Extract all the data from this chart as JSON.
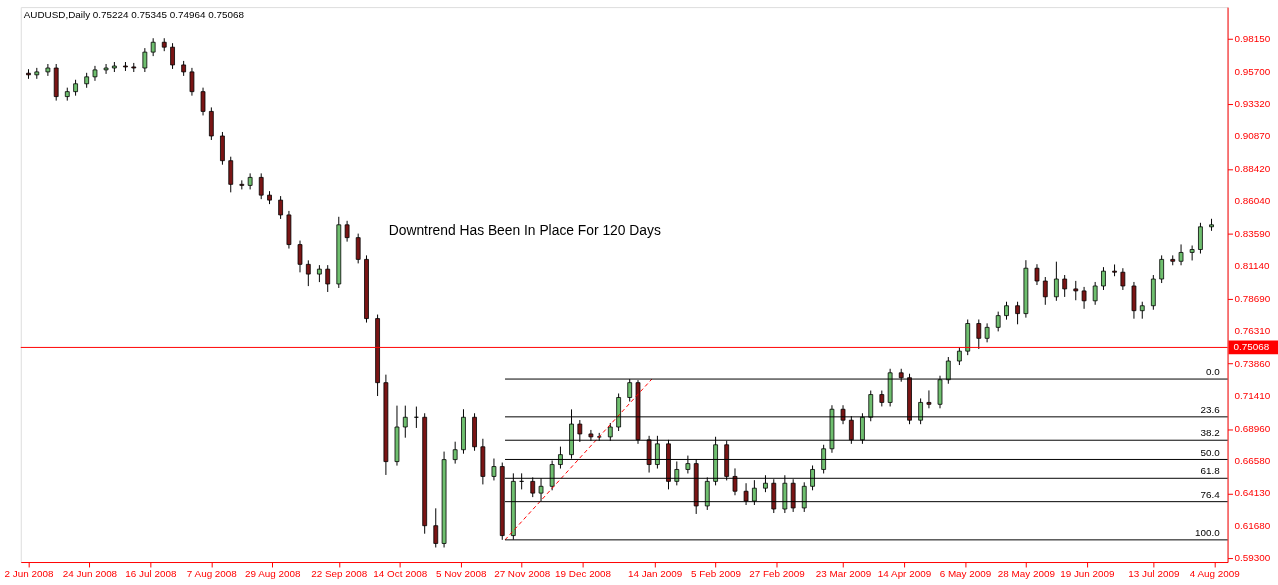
{
  "chart_data": {
    "type": "candlestick",
    "title": "AUDUSD,Daily  0.75224 0.75345 0.74964 0.75068",
    "annotations": [
      "Downtrend Has Been In Place For 120 Days",
      {
        "text": "0.0",
        "x": "2009-08-06",
        "y": 0.727
      },
      {
        "text": "23.6",
        "x": "2009-08-06",
        "y": 0.6987
      },
      {
        "text": "38.2",
        "x": "2009-08-06",
        "y": 0.6812
      },
      {
        "text": "50.0",
        "x": "2009-08-06",
        "y": 0.6668
      },
      {
        "text": "61.8",
        "x": "2009-08-06",
        "y": 0.6527
      },
      {
        "text": "76.4",
        "x": "2009-08-06",
        "y": 0.6352
      },
      {
        "text": "100.0",
        "x": "2009-08-06",
        "y": 0.6066
      }
    ],
    "x": [
      "2008-06-02",
      "2008-06-05",
      "2008-06-09",
      "2008-06-12",
      "2008-06-16",
      "2008-06-19",
      "2008-06-23",
      "2008-06-26",
      "2008-06-30",
      "2008-07-03",
      "2008-07-07",
      "2008-07-10",
      "2008-07-14",
      "2008-07-17",
      "2008-07-21",
      "2008-07-24",
      "2008-07-28",
      "2008-07-31",
      "2008-08-04",
      "2008-08-07",
      "2008-08-11",
      "2008-08-14",
      "2008-08-18",
      "2008-08-21",
      "2008-08-25",
      "2008-08-28",
      "2008-09-01",
      "2008-09-04",
      "2008-09-08",
      "2008-09-11",
      "2008-09-15",
      "2008-09-18",
      "2008-09-22",
      "2008-09-25",
      "2008-09-29",
      "2008-10-02",
      "2008-10-06",
      "2008-10-09",
      "2008-10-13",
      "2008-10-16",
      "2008-10-20",
      "2008-10-23",
      "2008-10-27",
      "2008-10-30",
      "2008-11-03",
      "2008-11-06",
      "2008-11-10",
      "2008-11-13",
      "2008-11-17",
      "2008-11-20",
      "2008-11-24",
      "2008-11-27",
      "2008-12-01",
      "2008-12-04",
      "2008-12-08",
      "2008-12-11",
      "2008-12-15",
      "2008-12-18",
      "2008-12-22",
      "2008-12-25",
      "2008-12-29",
      "2009-01-01",
      "2009-01-05",
      "2009-01-08",
      "2009-01-12",
      "2009-01-15",
      "2009-01-19",
      "2009-01-22",
      "2009-01-26",
      "2009-01-29",
      "2009-02-02",
      "2009-02-05",
      "2009-02-09",
      "2009-02-12",
      "2009-02-16",
      "2009-02-19",
      "2009-02-23",
      "2009-02-26",
      "2009-03-02",
      "2009-03-05",
      "2009-03-09",
      "2009-03-12",
      "2009-03-16",
      "2009-03-19",
      "2009-03-23",
      "2009-03-26",
      "2009-03-30",
      "2009-04-02",
      "2009-04-06",
      "2009-04-09",
      "2009-04-13",
      "2009-04-16",
      "2009-04-20",
      "2009-04-23",
      "2009-04-27",
      "2009-04-30",
      "2009-05-04",
      "2009-05-07",
      "2009-05-11",
      "2009-05-14",
      "2009-05-18",
      "2009-05-21",
      "2009-05-25",
      "2009-05-28",
      "2009-06-01",
      "2009-06-04",
      "2009-06-08",
      "2009-06-11",
      "2009-06-15",
      "2009-06-18",
      "2009-06-22",
      "2009-06-25",
      "2009-06-29",
      "2009-07-02",
      "2009-07-06",
      "2009-07-09",
      "2009-07-13",
      "2009-07-16",
      "2009-07-20",
      "2009-07-23",
      "2009-07-27",
      "2009-07-30",
      "2009-08-03"
    ],
    "ohlc": [
      [
        0.956,
        0.959,
        0.9518,
        0.9548
      ],
      [
        0.9548,
        0.96,
        0.9518,
        0.957
      ],
      [
        0.957,
        0.9629,
        0.954,
        0.9599
      ],
      [
        0.9599,
        0.9629,
        0.9355,
        0.9385
      ],
      [
        0.9385,
        0.9452,
        0.9355,
        0.9422
      ],
      [
        0.9422,
        0.9511,
        0.9392,
        0.9481
      ],
      [
        0.9481,
        0.9563,
        0.9451,
        0.9533
      ],
      [
        0.9533,
        0.9615,
        0.9503,
        0.9585
      ],
      [
        0.9585,
        0.9629,
        0.9555,
        0.9599
      ],
      [
        0.9599,
        0.9644,
        0.9569,
        0.9614
      ],
      [
        0.9614,
        0.9644,
        0.9577,
        0.9607
      ],
      [
        0.9607,
        0.9637,
        0.9569,
        0.9599
      ],
      [
        0.9599,
        0.9748,
        0.9569,
        0.9718
      ],
      [
        0.9718,
        0.9822,
        0.9688,
        0.9792
      ],
      [
        0.9792,
        0.9822,
        0.9725,
        0.9755
      ],
      [
        0.9755,
        0.9785,
        0.9592,
        0.9622
      ],
      [
        0.9622,
        0.9652,
        0.954,
        0.957
      ],
      [
        0.957,
        0.96,
        0.9392,
        0.9422
      ],
      [
        0.9422,
        0.9452,
        0.9244,
        0.9274
      ],
      [
        0.9274,
        0.9304,
        0.906,
        0.909
      ],
      [
        0.909,
        0.912,
        0.8875,
        0.8905
      ],
      [
        0.8905,
        0.8935,
        0.8668,
        0.8728
      ],
      [
        0.8728,
        0.8758,
        0.869,
        0.872
      ],
      [
        0.872,
        0.881,
        0.869,
        0.878
      ],
      [
        0.878,
        0.881,
        0.8617,
        0.8647
      ],
      [
        0.8647,
        0.8677,
        0.858,
        0.861
      ],
      [
        0.861,
        0.864,
        0.8469,
        0.8499
      ],
      [
        0.8499,
        0.8529,
        0.8247,
        0.8277
      ],
      [
        0.8277,
        0.8307,
        0.8069,
        0.8129
      ],
      [
        0.8129,
        0.8159,
        0.7966,
        0.8056
      ],
      [
        0.8056,
        0.8123,
        0.7996,
        0.8093
      ],
      [
        0.8093,
        0.8123,
        0.7922,
        0.7982
      ],
      [
        0.7982,
        0.8485,
        0.7952,
        0.8425
      ],
      [
        0.8425,
        0.8455,
        0.8299,
        0.8329
      ],
      [
        0.8329,
        0.8359,
        0.8136,
        0.8166
      ],
      [
        0.8166,
        0.8196,
        0.7693,
        0.7723
      ],
      [
        0.7723,
        0.7753,
        0.7143,
        0.7243
      ],
      [
        0.7243,
        0.7303,
        0.6552,
        0.6652
      ],
      [
        0.6652,
        0.7071,
        0.6622,
        0.6911
      ],
      [
        0.6911,
        0.7071,
        0.6831,
        0.6984
      ],
      [
        0.6984,
        0.7064,
        0.6904,
        0.6984
      ],
      [
        0.6984,
        0.7014,
        0.6112,
        0.6172
      ],
      [
        0.6172,
        0.6302,
        0.6009,
        0.6039
      ],
      [
        0.6039,
        0.6727,
        0.6009,
        0.6667
      ],
      [
        0.6667,
        0.6801,
        0.6637,
        0.6741
      ],
      [
        0.6741,
        0.7044,
        0.6711,
        0.6984
      ],
      [
        0.6984,
        0.7014,
        0.6733,
        0.6763
      ],
      [
        0.6763,
        0.6823,
        0.6481,
        0.6541
      ],
      [
        0.6541,
        0.6675,
        0.6511,
        0.6615
      ],
      [
        0.6615,
        0.6645,
        0.6066,
        0.6098
      ],
      [
        0.6098,
        0.6564,
        0.6068,
        0.6504
      ],
      [
        0.6504,
        0.6564,
        0.6444,
        0.6504
      ],
      [
        0.6504,
        0.6534,
        0.6386,
        0.6416
      ],
      [
        0.6416,
        0.6527,
        0.6356,
        0.6467
      ],
      [
        0.6467,
        0.666,
        0.6437,
        0.663
      ],
      [
        0.663,
        0.6764,
        0.66,
        0.6704
      ],
      [
        0.6704,
        0.7043,
        0.6674,
        0.6933
      ],
      [
        0.6933,
        0.6963,
        0.6799,
        0.6859
      ],
      [
        0.6859,
        0.6889,
        0.6807,
        0.6837
      ],
      [
        0.6837,
        0.6867,
        0.6807,
        0.6837
      ],
      [
        0.6837,
        0.6941,
        0.6807,
        0.6911
      ],
      [
        0.6911,
        0.7162,
        0.6881,
        0.7132
      ],
      [
        0.7132,
        0.727,
        0.7102,
        0.7243
      ],
      [
        0.7243,
        0.7262,
        0.6785,
        0.6815
      ],
      [
        0.6815,
        0.6845,
        0.657,
        0.663
      ],
      [
        0.663,
        0.6845,
        0.66,
        0.6785
      ],
      [
        0.6785,
        0.6815,
        0.6444,
        0.6504
      ],
      [
        0.6504,
        0.6653,
        0.6474,
        0.6593
      ],
      [
        0.6593,
        0.6697,
        0.6563,
        0.6637
      ],
      [
        0.6637,
        0.6667,
        0.626,
        0.632
      ],
      [
        0.632,
        0.6534,
        0.629,
        0.6504
      ],
      [
        0.6504,
        0.6838,
        0.6474,
        0.6778
      ],
      [
        0.6778,
        0.6808,
        0.6511,
        0.6541
      ],
      [
        0.6541,
        0.6601,
        0.64,
        0.643
      ],
      [
        0.643,
        0.649,
        0.6327,
        0.6357
      ],
      [
        0.6357,
        0.6513,
        0.6327,
        0.6453
      ],
      [
        0.6453,
        0.655,
        0.6423,
        0.649
      ],
      [
        0.649,
        0.652,
        0.6267,
        0.6297
      ],
      [
        0.6297,
        0.655,
        0.6267,
        0.649
      ],
      [
        0.649,
        0.652,
        0.6275,
        0.6305
      ],
      [
        0.6305,
        0.6497,
        0.6275,
        0.6467
      ],
      [
        0.6467,
        0.6623,
        0.6437,
        0.6593
      ],
      [
        0.6593,
        0.6778,
        0.6563,
        0.6748
      ],
      [
        0.6748,
        0.7074,
        0.6718,
        0.7044
      ],
      [
        0.7044,
        0.7074,
        0.6932,
        0.6962
      ],
      [
        0.6962,
        0.6992,
        0.6785,
        0.6815
      ],
      [
        0.6815,
        0.7014,
        0.6785,
        0.6984
      ],
      [
        0.6984,
        0.7184,
        0.6954,
        0.7154
      ],
      [
        0.7154,
        0.7184,
        0.7065,
        0.7095
      ],
      [
        0.7095,
        0.7347,
        0.7065,
        0.7317
      ],
      [
        0.7317,
        0.7347,
        0.725,
        0.728
      ],
      [
        0.728,
        0.731,
        0.6932,
        0.6962
      ],
      [
        0.6962,
        0.7125,
        0.6932,
        0.7095
      ],
      [
        0.7095,
        0.7185,
        0.7051,
        0.7081
      ],
      [
        0.7081,
        0.7295,
        0.7051,
        0.7265
      ],
      [
        0.7265,
        0.7435,
        0.7235,
        0.7405
      ],
      [
        0.7405,
        0.7509,
        0.7375,
        0.7479
      ],
      [
        0.7479,
        0.7716,
        0.7449,
        0.7686
      ],
      [
        0.7686,
        0.7716,
        0.7495,
        0.7575
      ],
      [
        0.7575,
        0.7687,
        0.7545,
        0.7657
      ],
      [
        0.7657,
        0.7775,
        0.7627,
        0.7745
      ],
      [
        0.7745,
        0.7849,
        0.7715,
        0.7819
      ],
      [
        0.7819,
        0.7849,
        0.768,
        0.776
      ],
      [
        0.776,
        0.816,
        0.773,
        0.81
      ],
      [
        0.81,
        0.813,
        0.7974,
        0.8004
      ],
      [
        0.8004,
        0.8034,
        0.7826,
        0.7886
      ],
      [
        0.7886,
        0.8149,
        0.7856,
        0.8019
      ],
      [
        0.8019,
        0.8049,
        0.7885,
        0.7945
      ],
      [
        0.7945,
        0.8005,
        0.786,
        0.793
      ],
      [
        0.793,
        0.796,
        0.7796,
        0.7856
      ],
      [
        0.7856,
        0.7997,
        0.7826,
        0.7967
      ],
      [
        0.7967,
        0.8108,
        0.7937,
        0.8078
      ],
      [
        0.8078,
        0.8128,
        0.804,
        0.807
      ],
      [
        0.807,
        0.81,
        0.7937,
        0.7967
      ],
      [
        0.7967,
        0.7997,
        0.7722,
        0.7782
      ],
      [
        0.7782,
        0.7849,
        0.7722,
        0.7819
      ],
      [
        0.7819,
        0.8049,
        0.7789,
        0.8019
      ],
      [
        0.8019,
        0.8196,
        0.7989,
        0.8166
      ],
      [
        0.8166,
        0.8196,
        0.8122,
        0.8152
      ],
      [
        0.8152,
        0.8278,
        0.8122,
        0.8218
      ],
      [
        0.8218,
        0.827,
        0.8158,
        0.824
      ],
      [
        0.824,
        0.844,
        0.821,
        0.841
      ],
      [
        0.841,
        0.847,
        0.838,
        0.8425
      ]
    ],
    "series": [
      {
        "type": "line",
        "x": [
          "2008-11-21",
          "2009-01-13"
        ],
        "values": [
          0.6066,
          0.727
        ],
        "color": "#ff0000",
        "line_style": "dashed"
      }
    ],
    "xlim": [
      "2008-06-01",
      "2009-08-07"
    ],
    "xticks": [
      {
        "value": "2008-06-02",
        "label": "2 Jun 2008"
      },
      {
        "value": "2008-06-24",
        "label": "24 Jun 2008"
      },
      {
        "value": "2008-07-16",
        "label": "16 Jul 2008"
      },
      {
        "value": "2008-08-07",
        "label": "7 Aug 2008"
      },
      {
        "value": "2008-08-29",
        "label": "29 Aug 2008"
      },
      {
        "value": "2008-09-22",
        "label": "22 Sep 2008"
      },
      {
        "value": "2008-10-14",
        "label": "14 Oct 2008"
      },
      {
        "value": "2008-11-05",
        "label": "5 Nov 2008"
      },
      {
        "value": "2008-11-27",
        "label": "27 Nov 2008"
      },
      {
        "value": "2008-12-19",
        "label": "19 Dec 2008"
      },
      {
        "value": "2009-01-14",
        "label": "14 Jan 2009"
      },
      {
        "value": "2009-02-05",
        "label": "5 Feb 2009"
      },
      {
        "value": "2009-02-27",
        "label": "27 Feb 2009"
      },
      {
        "value": "2009-03-23",
        "label": "23 Mar 2009"
      },
      {
        "value": "2009-04-14",
        "label": "14 Apr 2009"
      },
      {
        "value": "2009-05-06",
        "label": "6 May 2009"
      },
      {
        "value": "2009-05-28",
        "label": "28 May 2009"
      },
      {
        "value": "2009-06-19",
        "label": "19 Jun 2009"
      },
      {
        "value": "2009-07-13",
        "label": "13 Jul 2009"
      },
      {
        "value": "2009-08-04",
        "label": "4 Aug 2009"
      }
    ],
    "ylim": [
      0.59,
      1.0055
    ],
    "yticks": [
      {
        "value": 0.9815,
        "label": "0.98150"
      },
      {
        "value": 0.957,
        "label": "0.95700"
      },
      {
        "value": 0.9332,
        "label": "0.93320"
      },
      {
        "value": 0.9087,
        "label": "0.90870"
      },
      {
        "value": 0.8842,
        "label": "0.88420"
      },
      {
        "value": 0.8604,
        "label": "0.86040"
      },
      {
        "value": 0.8359,
        "label": "0.83590"
      },
      {
        "value": 0.8114,
        "label": "0.81140"
      },
      {
        "value": 0.7869,
        "label": "0.78690"
      },
      {
        "value": 0.7631,
        "label": "0.76310"
      },
      {
        "value": 0.7386,
        "label": "0.73860"
      },
      {
        "value": 0.7141,
        "label": "0.71410"
      },
      {
        "value": 0.6896,
        "label": "0.68960"
      },
      {
        "value": 0.6658,
        "label": "0.66580"
      },
      {
        "value": 0.6413,
        "label": "0.64130"
      },
      {
        "value": 0.6168,
        "label": "0.61680"
      },
      {
        "value": 0.593,
        "label": "0.59300"
      }
    ],
    "ref_lines": [
      {
        "axis": "y",
        "value": 0.75068,
        "label": "0.75068",
        "color": "#ff0000"
      },
      {
        "axis": "y",
        "value": 0.727,
        "color": "#000000"
      },
      {
        "axis": "y",
        "value": 0.6987,
        "color": "#000000"
      },
      {
        "axis": "y",
        "value": 0.6812,
        "color": "#000000"
      },
      {
        "axis": "y",
        "value": 0.6668,
        "color": "#000000"
      },
      {
        "axis": "y",
        "value": 0.6527,
        "color": "#000000"
      },
      {
        "axis": "y",
        "value": 0.6352,
        "color": "#000000"
      },
      {
        "axis": "y",
        "value": 0.6066,
        "color": "#000000"
      }
    ],
    "grid": false
  }
}
